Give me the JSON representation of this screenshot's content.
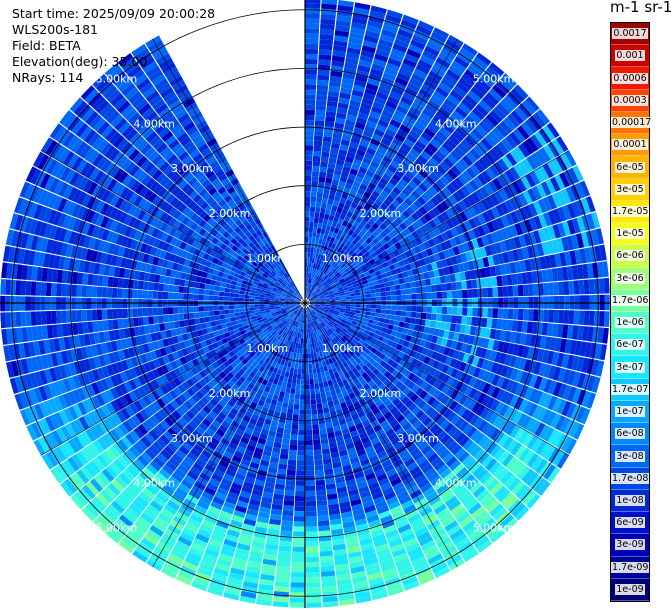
{
  "info": {
    "start_time": "Start time: 2025/09/09 20:00:28",
    "instrument": "WLS200s-181",
    "field": "Field: BETA",
    "elevation": "Elevation(deg): 35.00",
    "nrays": "NRays: 114"
  },
  "colorbar": {
    "title": "m-1 sr-1",
    "labels": [
      "0.0017",
      "0.001",
      "0.0006",
      "0.0003",
      "0.00017",
      "0.0001",
      "6e-05",
      "3e-05",
      "1.7e-05",
      "1e-05",
      "6e-06",
      "3e-06",
      "1.7e-06",
      "1e-06",
      "6e-07",
      "3e-07",
      "1.7e-07",
      "1e-07",
      "6e-08",
      "3e-08",
      "1.7e-08",
      "1e-08",
      "6e-09",
      "3e-09",
      "1.7e-09",
      "1e-09"
    ],
    "colors": [
      "#a50000",
      "#cc0000",
      "#ee1a00",
      "#ff4400",
      "#ff7300",
      "#ff9a00",
      "#ffb400",
      "#ffcf00",
      "#ffea00",
      "#f2ff1a",
      "#c8ff48",
      "#a0ff78",
      "#78ffa0",
      "#50ffc8",
      "#30f5e8",
      "#1ae6ff",
      "#10c8ff",
      "#08a8ff",
      "#0088ff",
      "#0068f5",
      "#0048e6",
      "#0028d8",
      "#0010c8",
      "#0000b4",
      "#00009a",
      "#00007a"
    ]
  },
  "range_labels": [
    "1.00km",
    "2.00km",
    "3.00km",
    "4.00km",
    "5.00km"
  ],
  "chart_data": {
    "type": "heatmap",
    "projection": "polar PPI (azimuth vs range)",
    "field": "BETA",
    "elevation_deg": 35.0,
    "nrays": 114,
    "range_rings_km": [
      1,
      2,
      3,
      4,
      5
    ],
    "max_range_km": 5.2,
    "gap_azimuth_deg": [
      -30,
      -1
    ],
    "colorbar_range": [
      1e-09,
      0.0017
    ],
    "colorbar_scale": "log",
    "dominant_values": {
      "near_range": "3e-08 to 1e-07",
      "south_far_range": "1.7e-07 to 1e-06"
    }
  }
}
